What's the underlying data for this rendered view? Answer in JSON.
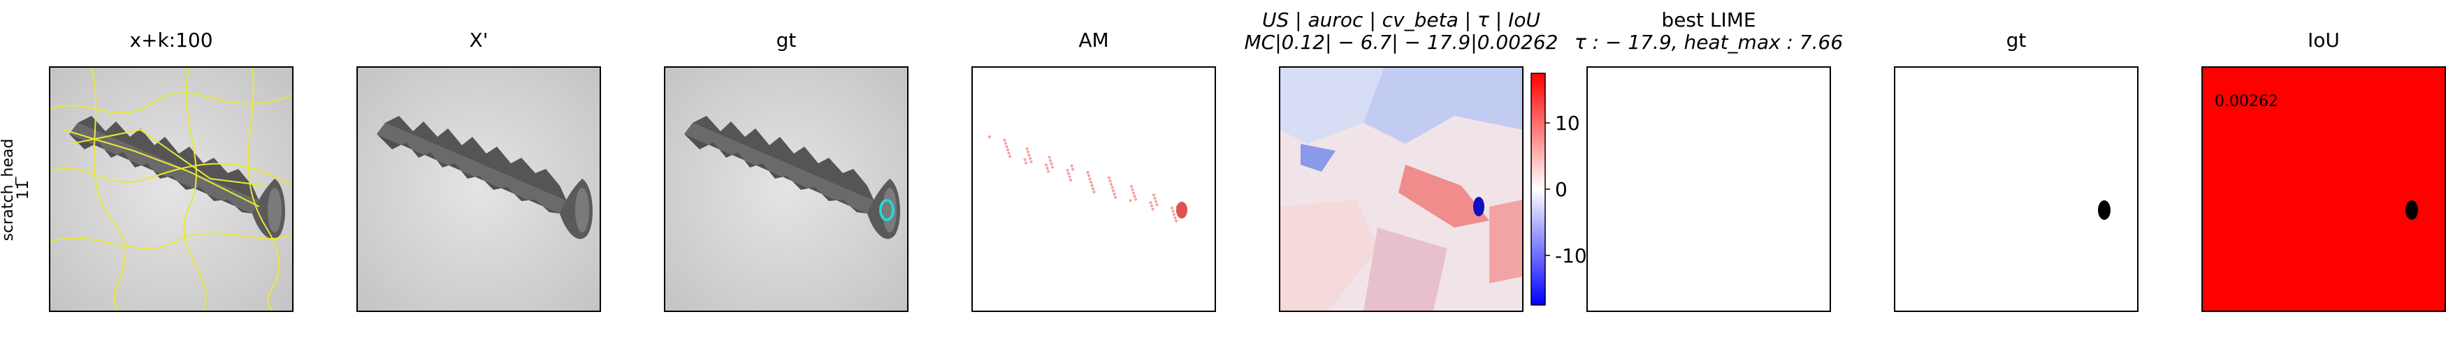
{
  "row_label": [
    "scratch_head",
    "11"
  ],
  "panels": [
    {
      "title_lines": [
        "x+k:100"
      ]
    },
    {
      "title_lines": [
        "X'"
      ]
    },
    {
      "title_lines": [
        "gt"
      ]
    },
    {
      "title_lines": [
        "AM"
      ]
    },
    {
      "title_lines": [
        "US | auroc | cv_beta | τ | IoU",
        "MC|0.12| − 6.7| − 17.9|0.00262"
      ],
      "colorbar": {
        "lim": [
          -17.5,
          17.5
        ],
        "ticks": [
          10,
          0,
          -10
        ]
      }
    },
    {
      "title_lines": [
        "best LIME",
        "τ : − 17.9, heat_max : 7.66"
      ]
    },
    {
      "title_lines": [
        "gt"
      ]
    },
    {
      "title_lines": [
        "IoU"
      ],
      "annotation": "0.00262"
    }
  ]
}
